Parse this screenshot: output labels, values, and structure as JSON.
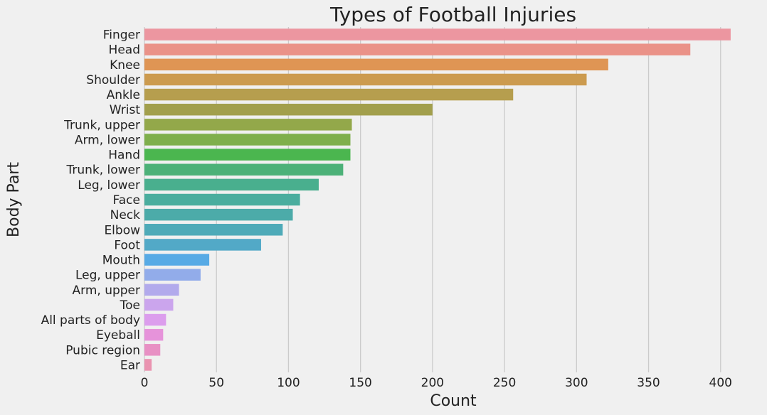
{
  "chart_data": {
    "type": "bar",
    "orientation": "horizontal",
    "title": "Types of Football Injuries",
    "xlabel": "Count",
    "ylabel": "Body Part",
    "xlim": [
      0,
      410
    ],
    "xticks": [
      0,
      50,
      100,
      150,
      200,
      250,
      300,
      350,
      400
    ],
    "grid": "vertical lines on",
    "categories": [
      "Finger",
      "Head",
      "Knee",
      "Shoulder",
      "Ankle",
      "Wrist",
      "Trunk, upper",
      "Arm, lower",
      "Hand",
      "Trunk, lower",
      "Leg, lower",
      "Face",
      "Neck",
      "Elbow",
      "Foot",
      "Mouth",
      "Leg, upper",
      "Arm, upper",
      "Toe",
      "All parts of body",
      "Eyeball",
      "Pubic region",
      "Ear"
    ],
    "values": [
      407,
      379,
      322,
      307,
      256,
      200,
      144,
      143,
      143,
      138,
      121,
      108,
      103,
      96,
      81,
      45,
      39,
      24,
      20,
      15,
      13,
      11,
      5
    ],
    "colors": [
      "#ec96a0",
      "#ea9288",
      "#df9554",
      "#cc9b4f",
      "#b69e4e",
      "#a29f4c",
      "#93a84a",
      "#7faf4c",
      "#4bb64f",
      "#4cb178",
      "#49af8e",
      "#4aad9e",
      "#4caba9",
      "#4eaab8",
      "#52a9c7",
      "#57aae5",
      "#92acea",
      "#b2aaec",
      "#cba5ed",
      "#dc9ded",
      "#e693da",
      "#e890c4",
      "#ea93b0"
    ]
  }
}
